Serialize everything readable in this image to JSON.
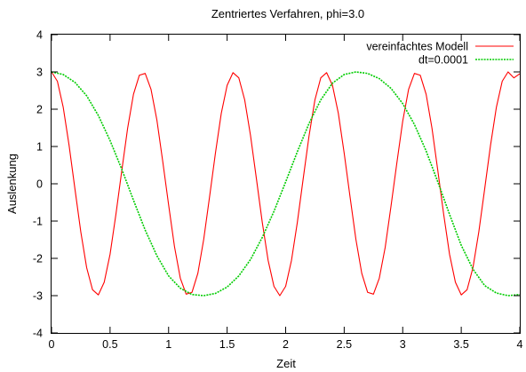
{
  "chart_data": {
    "type": "line",
    "title": "Zentriertes Verfahren, phi=3.0",
    "xlabel": "Zeit",
    "ylabel": "Auslenkung",
    "xlim": [
      0,
      4
    ],
    "ylim": [
      -4,
      4
    ],
    "xticks": [
      0,
      0.5,
      1,
      1.5,
      2,
      2.5,
      3,
      3.5,
      4
    ],
    "xtick_labels": [
      "0",
      "0.5",
      "1",
      "1.5",
      "2",
      "2.5",
      "3",
      "3.5",
      "4"
    ],
    "yticks": [
      -4,
      -3,
      -2,
      -1,
      0,
      1,
      2,
      3,
      4
    ],
    "ytick_labels": [
      "-4",
      "-3",
      "-2",
      "-1",
      "0",
      "1",
      "2",
      "3",
      "4"
    ],
    "grid": false,
    "legend_position": "top-right",
    "series": [
      {
        "name": "vereinfachtes Modell",
        "color": "#ff0000",
        "dash": "solid",
        "x": [
          0,
          0.05,
          0.1,
          0.15,
          0.2,
          0.25,
          0.3,
          0.35,
          0.4,
          0.45,
          0.5,
          0.55,
          0.6,
          0.65,
          0.7,
          0.75,
          0.8,
          0.85,
          0.9,
          0.95,
          1.0,
          1.05,
          1.1,
          1.15,
          1.2,
          1.25,
          1.3,
          1.35,
          1.4,
          1.45,
          1.5,
          1.55,
          1.6,
          1.65,
          1.7,
          1.75,
          1.8,
          1.85,
          1.9,
          1.95,
          2.0,
          2.05,
          2.1,
          2.15,
          2.2,
          2.25,
          2.3,
          2.35,
          2.4,
          2.45,
          2.5,
          2.55,
          2.6,
          2.65,
          2.7,
          2.75,
          2.8,
          2.85,
          2.9,
          2.95,
          3.0,
          3.05,
          3.1,
          3.15,
          3.2,
          3.25,
          3.3,
          3.35,
          3.4,
          3.45,
          3.5,
          3.55,
          3.6,
          3.65,
          3.7,
          3.75,
          3.8,
          3.85,
          3.9,
          3.95,
          4.0
        ],
        "y": [
          3.0,
          2.75,
          2.05,
          1.03,
          -0.14,
          -1.29,
          -2.25,
          -2.84,
          -2.98,
          -2.64,
          -1.89,
          -0.82,
          0.35,
          1.49,
          2.4,
          2.91,
          2.96,
          2.53,
          1.71,
          0.6,
          -0.56,
          -1.68,
          -2.53,
          -2.96,
          -2.91,
          -2.4,
          -1.49,
          -0.35,
          0.82,
          1.89,
          2.64,
          2.98,
          2.84,
          2.25,
          1.29,
          0.14,
          -1.03,
          -2.05,
          -2.75,
          -3.0,
          -2.75,
          -2.05,
          -1.03,
          0.14,
          1.29,
          2.25,
          2.84,
          2.98,
          2.64,
          1.89,
          0.82,
          -0.35,
          -1.49,
          -2.4,
          -2.91,
          -2.96,
          -2.53,
          -1.71,
          -0.6,
          0.56,
          1.68,
          2.53,
          2.96,
          2.91,
          2.4,
          1.49,
          0.35,
          -0.82,
          -1.89,
          -2.64,
          -2.98,
          -2.84,
          -2.25,
          -1.29,
          -0.14,
          1.03,
          2.05,
          2.75,
          3.0,
          2.84,
          2.95
        ]
      },
      {
        "name": "dt=0.0001",
        "color": "#00cc00",
        "dash": "dotted",
        "x": [
          0,
          0.1,
          0.2,
          0.3,
          0.4,
          0.5,
          0.6,
          0.7,
          0.8,
          0.9,
          1.0,
          1.1,
          1.2,
          1.3,
          1.4,
          1.5,
          1.6,
          1.7,
          1.8,
          1.9,
          2.0,
          2.1,
          2.2,
          2.3,
          2.4,
          2.5,
          2.6,
          2.7,
          2.8,
          2.9,
          3.0,
          3.1,
          3.2,
          3.3,
          3.4,
          3.5,
          3.6,
          3.7,
          3.8,
          3.9,
          4.0
        ],
        "y": [
          3.0,
          2.93,
          2.72,
          2.36,
          1.83,
          1.16,
          0.39,
          -0.44,
          -1.24,
          -1.93,
          -2.47,
          -2.8,
          -2.97,
          -3.0,
          -2.94,
          -2.77,
          -2.47,
          -2.03,
          -1.44,
          -0.74,
          0.05,
          0.86,
          1.62,
          2.25,
          2.7,
          2.93,
          3.0,
          2.96,
          2.82,
          2.56,
          2.15,
          1.59,
          0.88,
          0.05,
          -0.82,
          -1.65,
          -2.29,
          -2.73,
          -2.93,
          -3.0,
          -2.97
        ]
      }
    ]
  }
}
